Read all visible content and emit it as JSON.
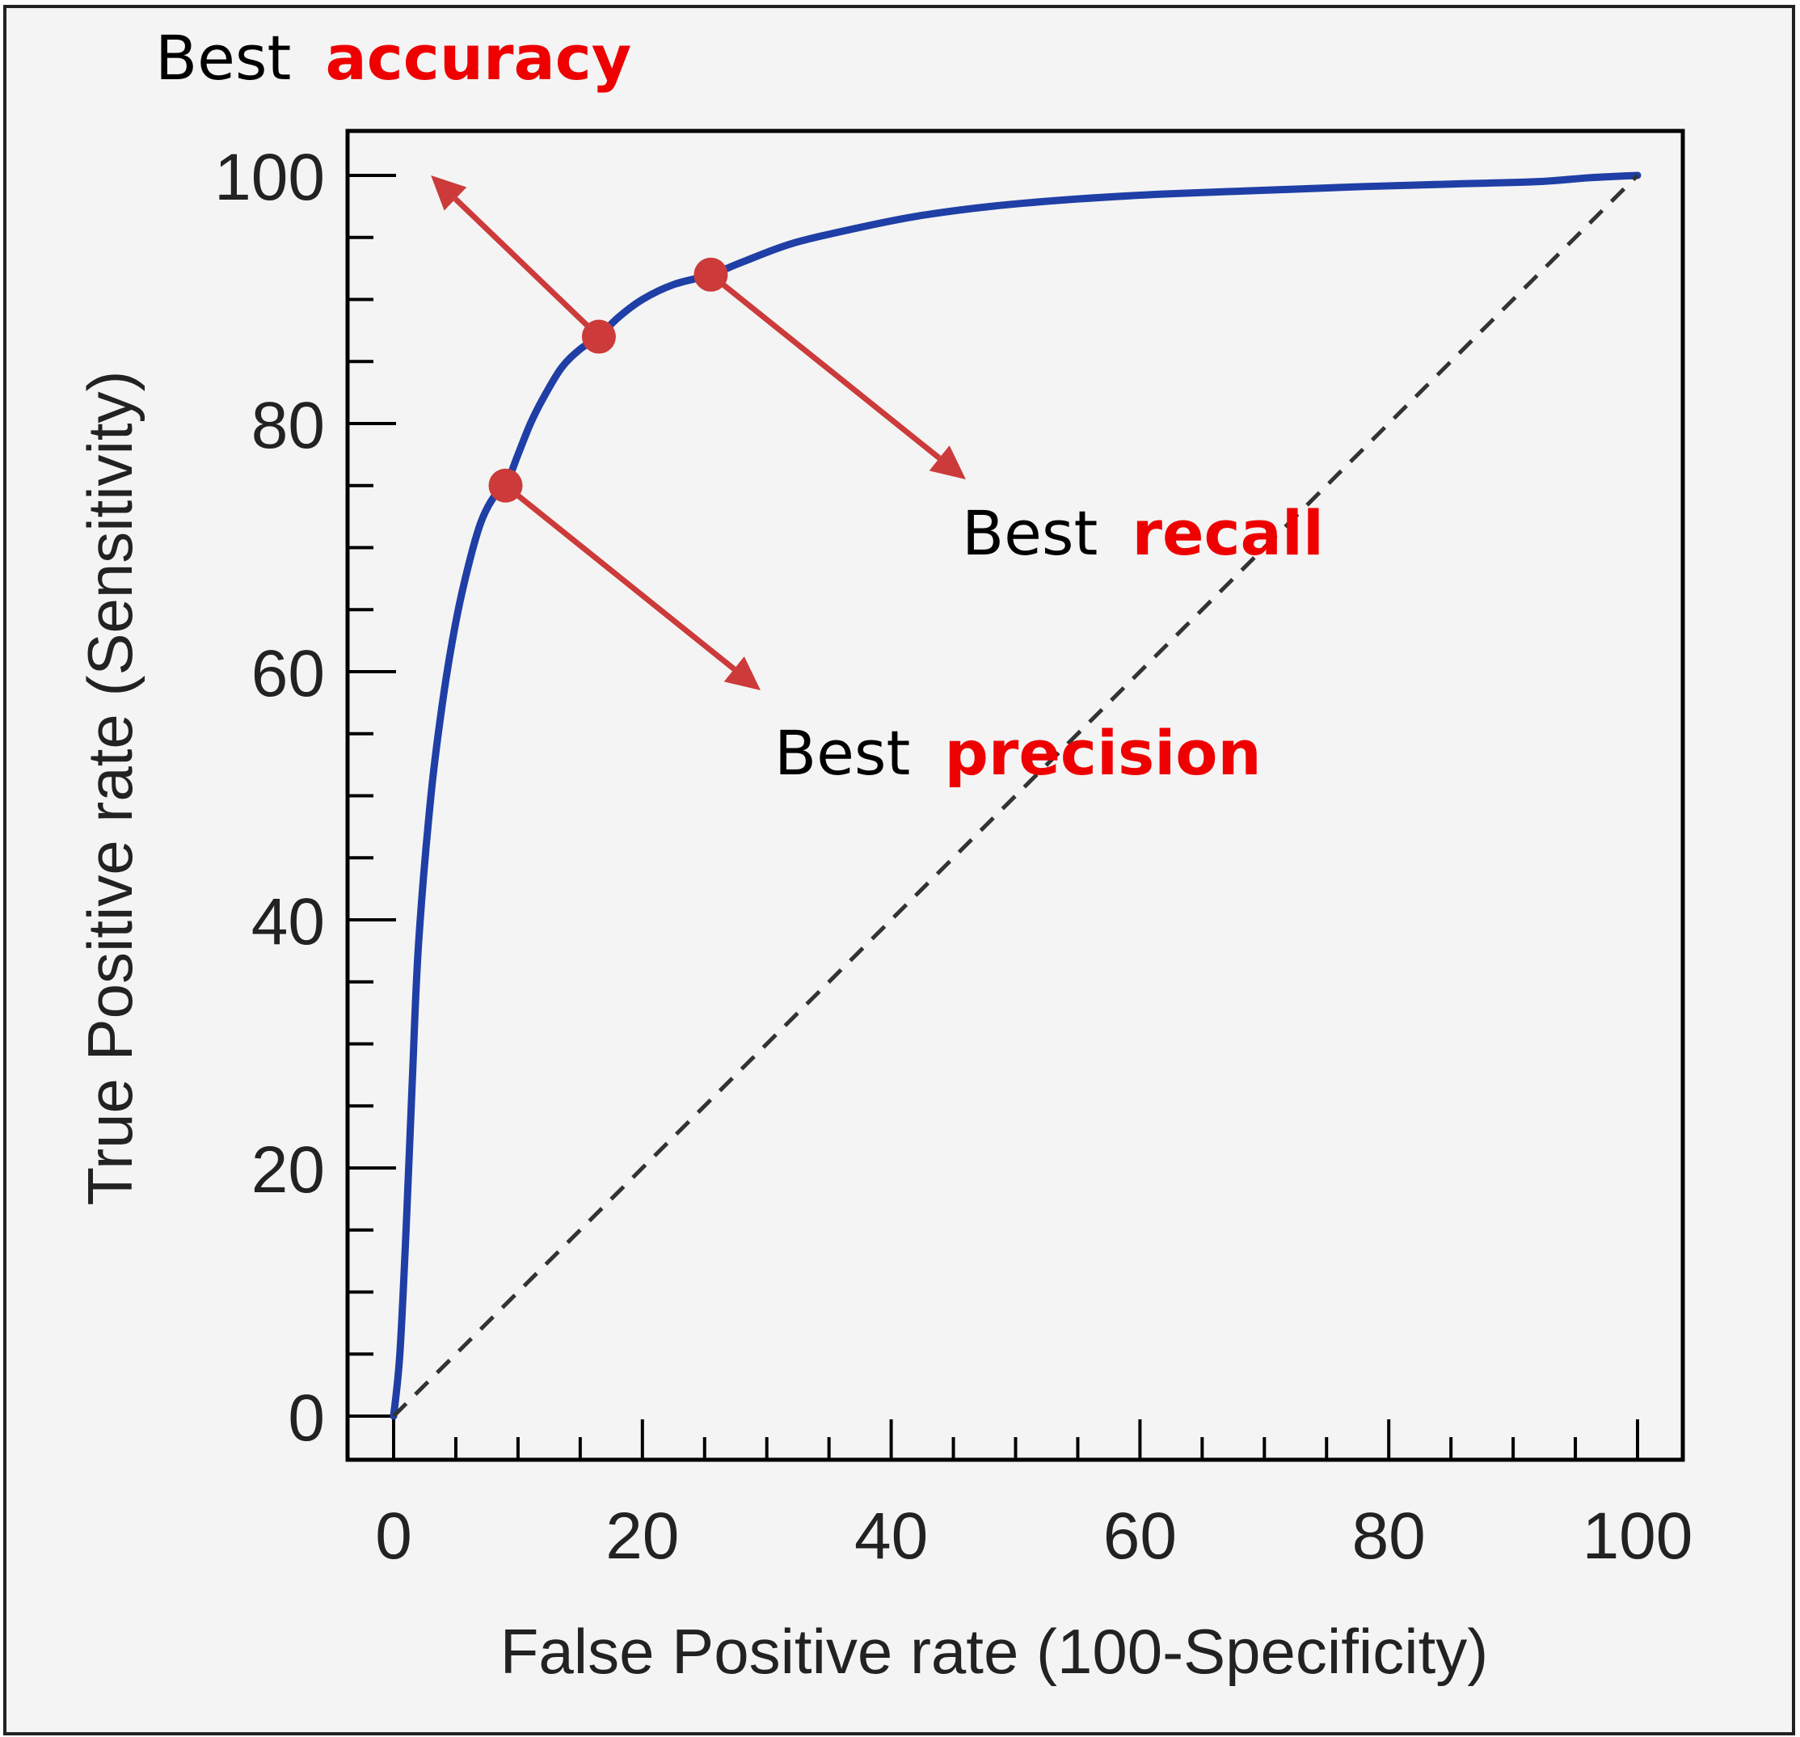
{
  "chart_data": {
    "type": "line",
    "xlabel": "False Positive rate (100-Specificity)",
    "ylabel": "True Positive rate (Sensitivity)",
    "xlim": [
      0,
      100
    ],
    "ylim": [
      0,
      100
    ],
    "x_ticks": [
      0,
      20,
      40,
      60,
      80,
      100
    ],
    "y_ticks": [
      0,
      20,
      40,
      60,
      80,
      100
    ],
    "grid": false,
    "series": [
      {
        "kind": "roc-curve",
        "color": "#1f3fa6",
        "points": [
          [
            0,
            0
          ],
          [
            0.5,
            5
          ],
          [
            1,
            15
          ],
          [
            1.5,
            27
          ],
          [
            2,
            38
          ],
          [
            3,
            50
          ],
          [
            4,
            58
          ],
          [
            5,
            64
          ],
          [
            6,
            68.5
          ],
          [
            7,
            72
          ],
          [
            8,
            74
          ],
          [
            9,
            75
          ],
          [
            10,
            77.5
          ],
          [
            11,
            80
          ],
          [
            12,
            82
          ],
          [
            13.5,
            84.5
          ],
          [
            15,
            86
          ],
          [
            16.5,
            87
          ],
          [
            18,
            88.5
          ],
          [
            20,
            90
          ],
          [
            22.5,
            91.2
          ],
          [
            25.5,
            92
          ],
          [
            28,
            93
          ],
          [
            32,
            94.5
          ],
          [
            37,
            95.7
          ],
          [
            42,
            96.7
          ],
          [
            48,
            97.5
          ],
          [
            55,
            98.1
          ],
          [
            62,
            98.5
          ],
          [
            70,
            98.8
          ],
          [
            78,
            99.1
          ],
          [
            85,
            99.3
          ],
          [
            92,
            99.5
          ],
          [
            96,
            99.8
          ],
          [
            100,
            100
          ]
        ]
      },
      {
        "kind": "chance-diagonal",
        "color": "#333333",
        "dashed": true,
        "points": [
          [
            0,
            0
          ],
          [
            100,
            100
          ]
        ]
      }
    ],
    "markers": [
      {
        "id": "accuracy",
        "x": 16.5,
        "y": 87
      },
      {
        "id": "recall",
        "x": 25.5,
        "y": 92
      },
      {
        "id": "precision",
        "x": 9,
        "y": 75
      }
    ],
    "arrows": [
      {
        "from": "accuracy",
        "to": [
          3,
          100
        ]
      },
      {
        "from": "recall",
        "to": [
          46,
          75.5
        ]
      },
      {
        "from": "precision",
        "to": [
          29.5,
          58.5
        ]
      }
    ],
    "annotations": [
      {
        "id": "accuracy",
        "prefix": "Best",
        "keyword": "accuracy"
      },
      {
        "id": "recall",
        "prefix": "Best",
        "keyword": "recall"
      },
      {
        "id": "precision",
        "prefix": "Best",
        "keyword": "precision"
      }
    ],
    "colors": {
      "background": "#f4f4f4",
      "frame": "#222222",
      "curve": "#1f3fa6",
      "marker": "#cc3a3a",
      "keyword": "#ee0000",
      "text": "#000000"
    }
  }
}
